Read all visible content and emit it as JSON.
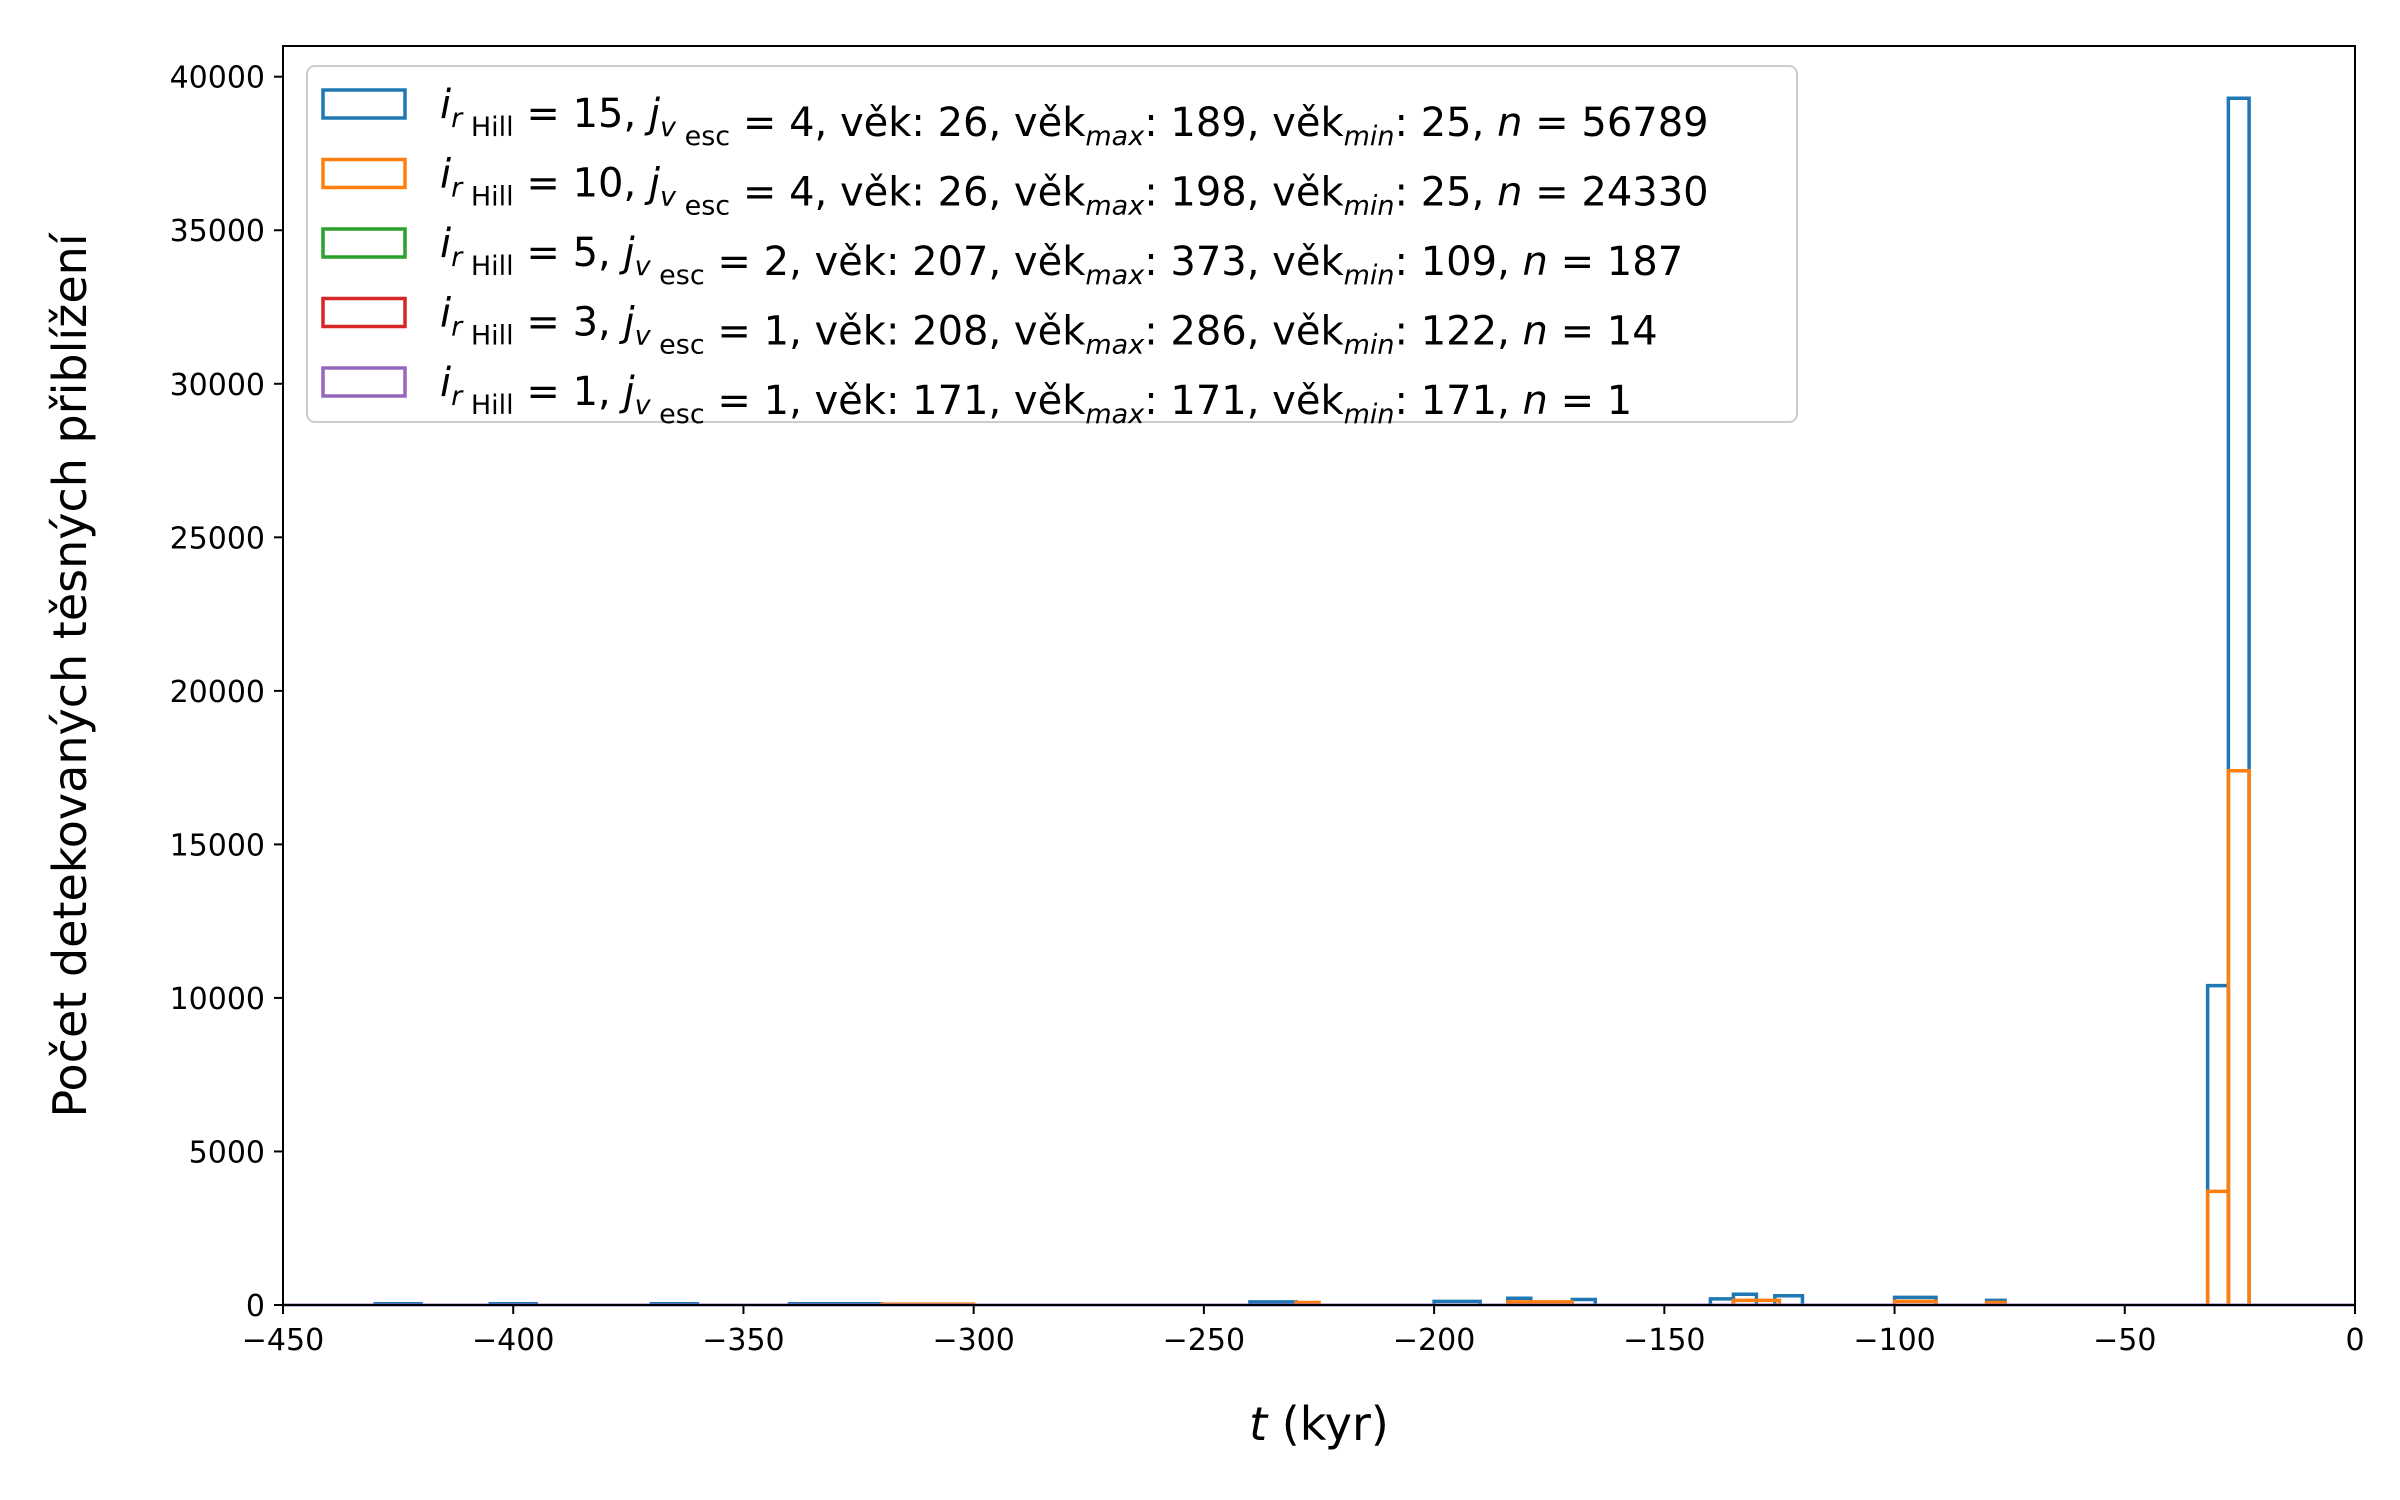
{
  "chart_data": {
    "type": "histogram",
    "title": "",
    "xlabel_symbol": "t",
    "xlabel_unit": " (kyr)",
    "ylabel": "Počet detekovaných těsných přiblížení",
    "xlim": [
      -450,
      0
    ],
    "ylim": [
      0,
      41000
    ],
    "xticks": [
      -450,
      -400,
      -350,
      -300,
      -250,
      -200,
      -150,
      -100,
      -50,
      0
    ],
    "xtick_labels": [
      "−450",
      "−400",
      "−350",
      "−300",
      "−250",
      "−200",
      "−150",
      "−100",
      "−50",
      "0"
    ],
    "yticks": [
      0,
      5000,
      10000,
      15000,
      20000,
      25000,
      30000,
      35000,
      40000
    ],
    "ytick_labels": [
      "0",
      "5000",
      "10000",
      "15000",
      "20000",
      "25000",
      "30000",
      "35000",
      "40000"
    ],
    "grid": false,
    "legend_position": "top-left",
    "legend": [
      {
        "i": "15",
        "j": "4",
        "age": " 26",
        "age_max": "189",
        "age_min": "25",
        "n": "56789",
        "color": "#1f77b4"
      },
      {
        "i": "10",
        "j": "4",
        "age": " 26",
        "age_max": "198",
        "age_min": "25",
        "n": "24330",
        "color": "#ff7f0e"
      },
      {
        "i": " 5",
        "j": "2",
        "age": "207",
        "age_max": "373",
        "age_min": "109",
        "n": "187",
        "color": "#2ca02c"
      },
      {
        "i": " 3",
        "j": "1",
        "age": "208",
        "age_max": "286",
        "age_min": "122",
        "n": "14",
        "color": "#d62728"
      },
      {
        "i": " 1",
        "j": "1",
        "age": "171",
        "age_max": "171",
        "age_min": "171",
        "n": "1",
        "color": "#9467bd"
      }
    ],
    "series": [
      {
        "name": "i rHill = 15, j v esc = 4",
        "color": "#1f77b4",
        "bins": [
          {
            "x0": -32,
            "x1": -27.5,
            "y": 10400
          },
          {
            "x0": -27.5,
            "x1": -23,
            "y": 39300
          },
          {
            "x0": -135,
            "x1": -130,
            "y": 350
          },
          {
            "x0": -126,
            "x1": -120,
            "y": 300
          },
          {
            "x0": -100,
            "x1": -91,
            "y": 250
          },
          {
            "x0": -184,
            "x1": -179,
            "y": 220
          },
          {
            "x0": -170,
            "x1": -165,
            "y": 180
          },
          {
            "x0": -140,
            "x1": -135,
            "y": 200
          },
          {
            "x0": -80,
            "x1": -76,
            "y": 150
          },
          {
            "x0": -240,
            "x1": -230,
            "y": 100
          },
          {
            "x0": -200,
            "x1": -190,
            "y": 120
          },
          {
            "x0": -430,
            "x1": -420,
            "y": 40
          },
          {
            "x0": -405,
            "x1": -395,
            "y": 40
          },
          {
            "x0": -370,
            "x1": -360,
            "y": 40
          },
          {
            "x0": -340,
            "x1": -320,
            "y": 40
          }
        ]
      },
      {
        "name": "i rHill = 10, j v esc = 4",
        "color": "#ff7f0e",
        "bins": [
          {
            "x0": -32,
            "x1": -27.5,
            "y": 3700
          },
          {
            "x0": -27.5,
            "x1": -23,
            "y": 17400
          },
          {
            "x0": -135,
            "x1": -125,
            "y": 150
          },
          {
            "x0": -184,
            "x1": -170,
            "y": 100
          },
          {
            "x0": -100,
            "x1": -91,
            "y": 120
          },
          {
            "x0": -80,
            "x1": -76,
            "y": 80
          },
          {
            "x0": -230,
            "x1": -225,
            "y": 80
          },
          {
            "x0": -320,
            "x1": -300,
            "y": 30
          }
        ]
      },
      {
        "name": "i rHill = 5, j v esc = 2",
        "color": "#2ca02c",
        "bins": []
      },
      {
        "name": "i rHill = 3, j v esc = 1",
        "color": "#d62728",
        "bins": []
      },
      {
        "name": "i rHill = 1, j v esc = 1",
        "color": "#9467bd",
        "bins": []
      }
    ]
  }
}
